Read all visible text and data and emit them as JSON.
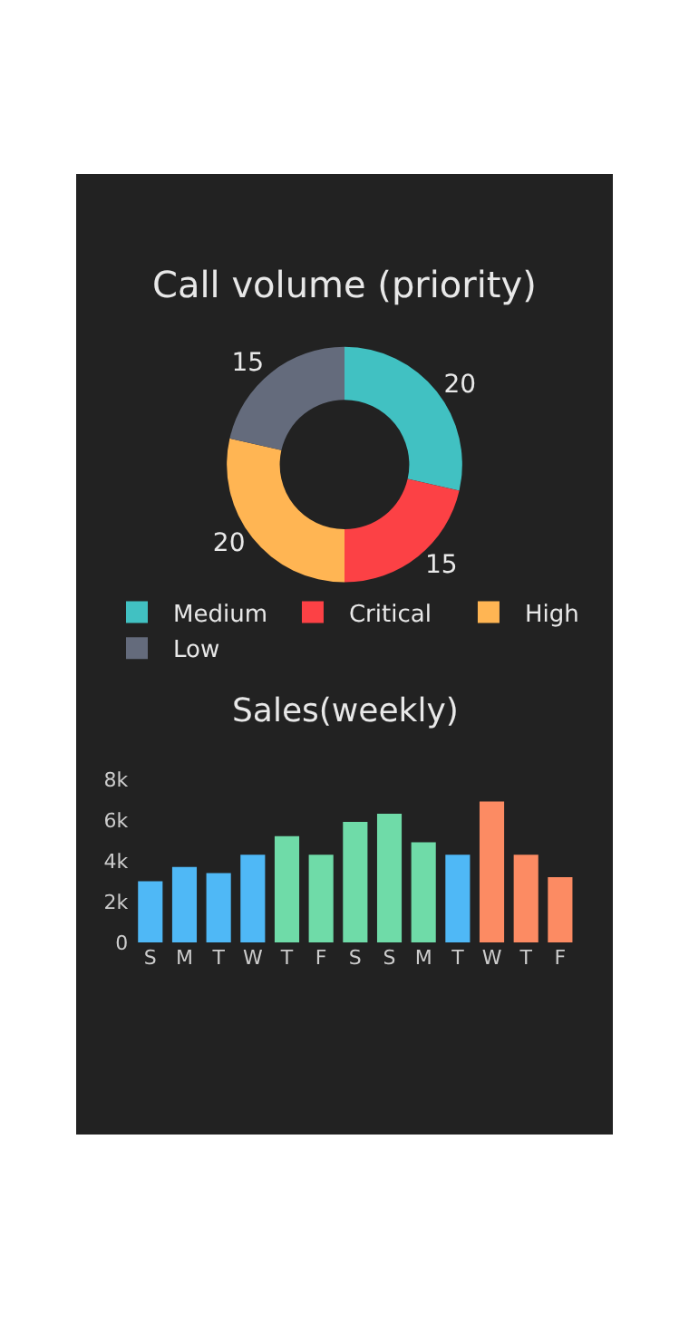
{
  "chart_data": [
    {
      "type": "donut",
      "title": "Call volume (priority)",
      "categories": [
        "Medium",
        "Critical",
        "High",
        "Low"
      ],
      "values": [
        20,
        15,
        20,
        15
      ],
      "colors": [
        "#41c1c2",
        "#fc4145",
        "#ffb553",
        "#646b7c"
      ],
      "data_labels": true,
      "legend": "bottom"
    },
    {
      "type": "bar",
      "title": "Sales(weekly)",
      "categories": [
        "S",
        "M",
        "T",
        "W",
        "T",
        "F",
        "S",
        "S",
        "M",
        "T",
        "W",
        "T",
        "F"
      ],
      "values": [
        3000,
        3700,
        3400,
        4300,
        5200,
        4300,
        5900,
        6300,
        4900,
        4300,
        6900,
        4300,
        3200
      ],
      "colors": [
        "#4fb8f6",
        "#4fb8f6",
        "#4fb8f6",
        "#4fb8f6",
        "#6fdba8",
        "#6fdba8",
        "#6fdba8",
        "#6fdba8",
        "#6fdba8",
        "#4fb8f6",
        "#fc8b63",
        "#fc8b63",
        "#fc8b63"
      ],
      "ylim": [
        0,
        8000
      ],
      "yticks": [
        0,
        {
          "value": 2000,
          "label": "2k"
        },
        {
          "value": 4000,
          "label": "4k"
        },
        {
          "value": 6000,
          "label": "6k"
        },
        {
          "value": 8000,
          "label": "8k"
        }
      ],
      "grid": false,
      "legend": false
    }
  ]
}
